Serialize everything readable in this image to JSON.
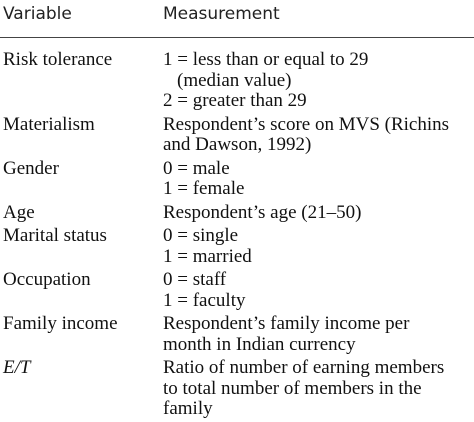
{
  "table": {
    "header": [
      "Variable",
      "Measurement"
    ],
    "rows": [
      {
        "variable": "Risk tolerance",
        "measurement": [
          "1 = less than or equal to 29",
          "(median value)",
          "2 = greater than 29"
        ]
      },
      {
        "variable": "Materialism",
        "measurement": [
          "Respondent’s score on MVS (Richins",
          "and Dawson, 1992)"
        ]
      },
      {
        "variable": "Gender",
        "measurement": [
          "0 = male",
          "1 = female"
        ]
      },
      {
        "variable": "Age",
        "measurement": [
          "Respondent’s age (21–50)"
        ]
      },
      {
        "variable": "Marital status",
        "measurement": [
          "0 = single",
          "1 = married"
        ]
      },
      {
        "variable": "Occupation",
        "measurement": [
          "0 = staff",
          "1 = faculty"
        ]
      },
      {
        "variable": "Family income",
        "measurement": [
          "Respondent’s family income per",
          "month in Indian currency"
        ]
      },
      {
        "variable": "E/T",
        "measurement": [
          "Ratio of number of earning members",
          "to total number of members in the",
          "family"
        ]
      }
    ]
  }
}
